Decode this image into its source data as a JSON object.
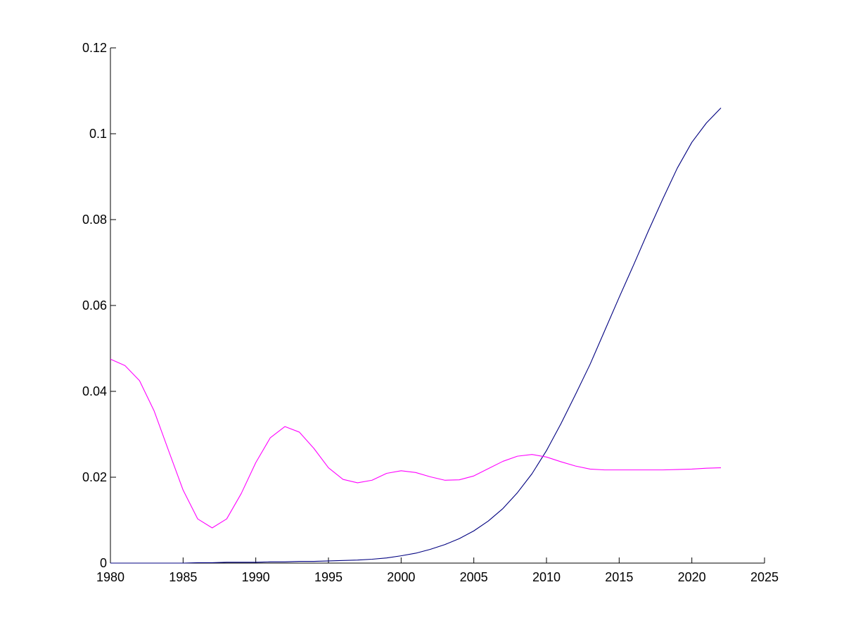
{
  "chart_data": {
    "type": "line",
    "title": "",
    "xlabel": "",
    "ylabel": "",
    "xlim": [
      1980,
      2025
    ],
    "ylim": [
      0,
      0.12
    ],
    "xticks": [
      1980,
      1985,
      1990,
      1995,
      2000,
      2005,
      2010,
      2015,
      2020,
      2025
    ],
    "yticks": [
      0,
      0.02,
      0.04,
      0.06,
      0.08,
      0.1,
      0.12
    ],
    "xtick_labels": [
      "1980",
      "1985",
      "1990",
      "1995",
      "2000",
      "2005",
      "2010",
      "2015",
      "2020",
      "2025"
    ],
    "ytick_labels": [
      "0",
      "0.02",
      "0.04",
      "0.06",
      "0.08",
      "0.1",
      "0.12"
    ],
    "grid": false,
    "box": false,
    "x": [
      1980,
      1981,
      1982,
      1983,
      1984,
      1985,
      1986,
      1987,
      1988,
      1989,
      1990,
      1991,
      1992,
      1993,
      1994,
      1995,
      1996,
      1997,
      1998,
      1999,
      2000,
      2001,
      2002,
      2003,
      2004,
      2005,
      2006,
      2007,
      2008,
      2009,
      2010,
      2011,
      2012,
      2013,
      2014,
      2015,
      2016,
      2017,
      2018,
      2019,
      2020,
      2021,
      2022
    ],
    "series": [
      {
        "color": "#000080",
        "values": [
          0,
          0,
          0,
          0,
          0,
          0,
          0.0001,
          0.0001,
          0.0002,
          0.0002,
          0.0002,
          0.0003,
          0.0003,
          0.0004,
          0.0004,
          0.0005,
          0.0006,
          0.0007,
          0.0009,
          0.0012,
          0.0017,
          0.0023,
          0.0032,
          0.0043,
          0.0057,
          0.0075,
          0.0098,
          0.0127,
          0.0164,
          0.0208,
          0.0262,
          0.0325,
          0.0393,
          0.0463,
          0.0541,
          0.0619,
          0.0695,
          0.0773,
          0.0848,
          0.092,
          0.098,
          0.1025,
          0.106
        ]
      },
      {
        "color": "#ff00ff",
        "values": [
          0.0475,
          0.046,
          0.0425,
          0.0355,
          0.0262,
          0.017,
          0.0103,
          0.0082,
          0.0103,
          0.0162,
          0.0234,
          0.0292,
          0.0318,
          0.0305,
          0.0267,
          0.0222,
          0.0195,
          0.0187,
          0.0193,
          0.0209,
          0.0215,
          0.0211,
          0.0201,
          0.0193,
          0.0194,
          0.0203,
          0.022,
          0.0237,
          0.0249,
          0.0253,
          0.0247,
          0.0236,
          0.0226,
          0.0219,
          0.0217,
          0.0217,
          0.0217,
          0.0217,
          0.0217,
          0.0218,
          0.0219,
          0.0221,
          0.0222
        ]
      }
    ]
  }
}
